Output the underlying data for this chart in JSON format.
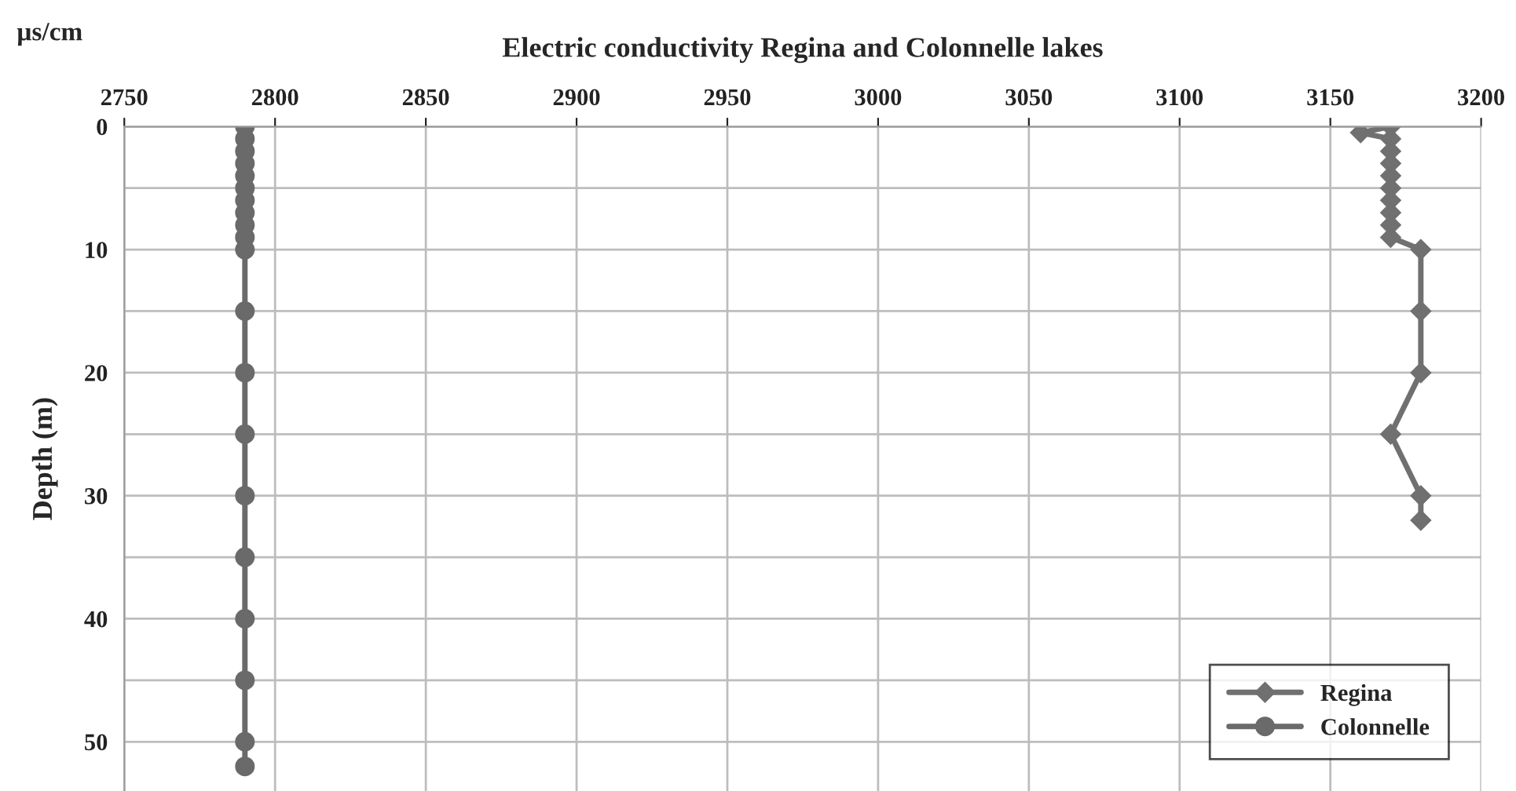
{
  "chart_data": {
    "type": "line",
    "title": "Electric conductivity Regina and Colonnelle lakes",
    "xlabel": "µs/cm",
    "ylabel": "Depth (m)",
    "xlim": [
      2750,
      3200
    ],
    "xticks": [
      2750,
      2800,
      2850,
      2900,
      2950,
      3000,
      3050,
      3100,
      3150,
      3200
    ],
    "ylim": [
      54,
      0
    ],
    "yticks": [
      0,
      {
        "value": 5,
        "label": null
      },
      10,
      {
        "value": 15,
        "label": null
      },
      20,
      {
        "value": 25,
        "label": null
      },
      30,
      {
        "value": 35,
        "label": null
      },
      40,
      {
        "value": 45,
        "label": null
      },
      50
    ],
    "grid": true,
    "legend": "bottom right",
    "series": [
      {
        "name": "Regina",
        "color": "#707070",
        "marker": "diamond",
        "x": [
          3170,
          3160,
          3170,
          3170,
          3170,
          3170,
          3170,
          3170,
          3170,
          3170,
          3170,
          3180,
          3180,
          3180,
          3170,
          3180,
          3180
        ],
        "values": [
          0,
          0.5,
          1,
          2,
          3,
          4,
          5,
          6,
          7,
          8,
          9,
          10,
          15,
          20,
          25,
          30,
          32
        ]
      },
      {
        "name": "Colonnelle",
        "color": "#6a6a6a",
        "marker": "circle",
        "x": [
          2790,
          2790,
          2790,
          2790,
          2790,
          2790,
          2790,
          2790,
          2790,
          2790,
          2790,
          2790,
          2790,
          2790,
          2790,
          2790,
          2790,
          2790,
          2790,
          2790
        ],
        "values": [
          0,
          1,
          2,
          3,
          4,
          5,
          6,
          7,
          8,
          9,
          10,
          15,
          20,
          25,
          30,
          35,
          40,
          45,
          50,
          52
        ]
      }
    ]
  }
}
